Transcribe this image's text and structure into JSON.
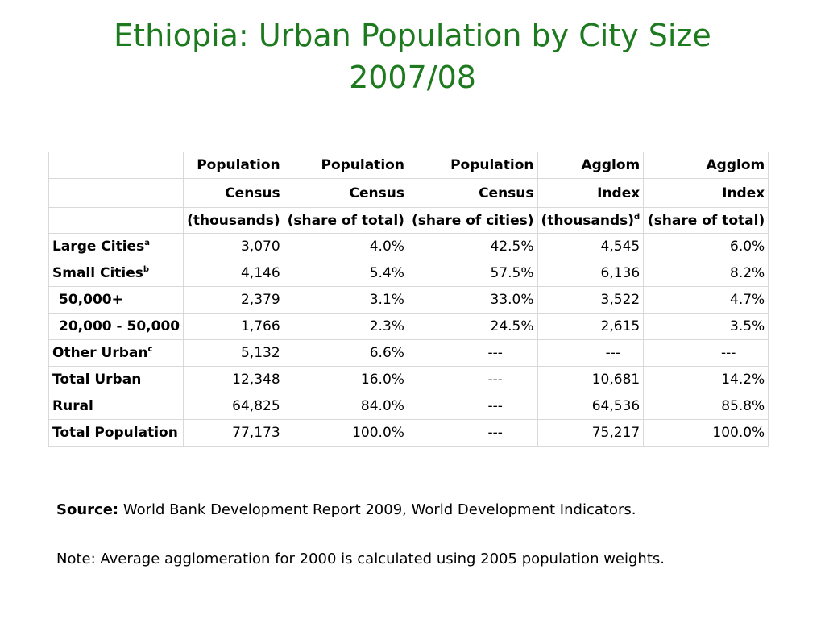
{
  "title": {
    "line1": "Ethiopia: Urban Population by City Size",
    "line2": "2007/08"
  },
  "table": {
    "header_rows": [
      [
        "",
        "Population",
        "Population",
        "Population",
        "Agglom",
        "Agglom"
      ],
      [
        "",
        "Census",
        "Census",
        "Census",
        "Index",
        "Index"
      ],
      [
        "",
        "(thousands)",
        "(share of total)",
        "(share of cities)",
        "(thousands)",
        "(share of total)"
      ]
    ],
    "header_superscripts": {
      "r2c4": "d"
    },
    "rows": [
      {
        "label": "Large Cities",
        "sup": "a",
        "indent": false,
        "values": [
          "3,070",
          "4.0%",
          "42.5%",
          "4,545",
          "6.0%"
        ]
      },
      {
        "label": "Small Cities",
        "sup": "b",
        "indent": false,
        "values": [
          "4,146",
          "5.4%",
          "57.5%",
          "6,136",
          "8.2%"
        ]
      },
      {
        "label": "50,000+",
        "sup": "",
        "indent": true,
        "values": [
          "2,379",
          "3.1%",
          "33.0%",
          "3,522",
          "4.7%"
        ]
      },
      {
        "label": "20,000 - 50,000",
        "sup": "",
        "indent": true,
        "values": [
          "1,766",
          "2.3%",
          "24.5%",
          "2,615",
          "3.5%"
        ]
      },
      {
        "label": "Other Urban",
        "sup": "c",
        "indent": false,
        "values": [
          "5,132",
          "6.6%",
          "---",
          "---",
          "---"
        ]
      },
      {
        "label": "Total Urban",
        "sup": "",
        "indent": false,
        "values": [
          "12,348",
          "16.0%",
          "---",
          "10,681",
          "14.2%"
        ]
      },
      {
        "label": "Rural",
        "sup": "",
        "indent": false,
        "values": [
          "64,825",
          "84.0%",
          "---",
          "64,536",
          "85.8%"
        ]
      },
      {
        "label": "Total Population",
        "sup": "",
        "indent": false,
        "values": [
          "77,173",
          "100.0%",
          "---",
          "75,217",
          "100.0%"
        ]
      }
    ]
  },
  "source": {
    "label": "Source:",
    "text": " World Bank Development Report 2009, World Development Indicators."
  },
  "note": "Note: Average agglomeration for 2000 is calculated using 2005 population weights.",
  "colors": {
    "title": "#1e7a1e",
    "grid": "#d9d9d9"
  }
}
